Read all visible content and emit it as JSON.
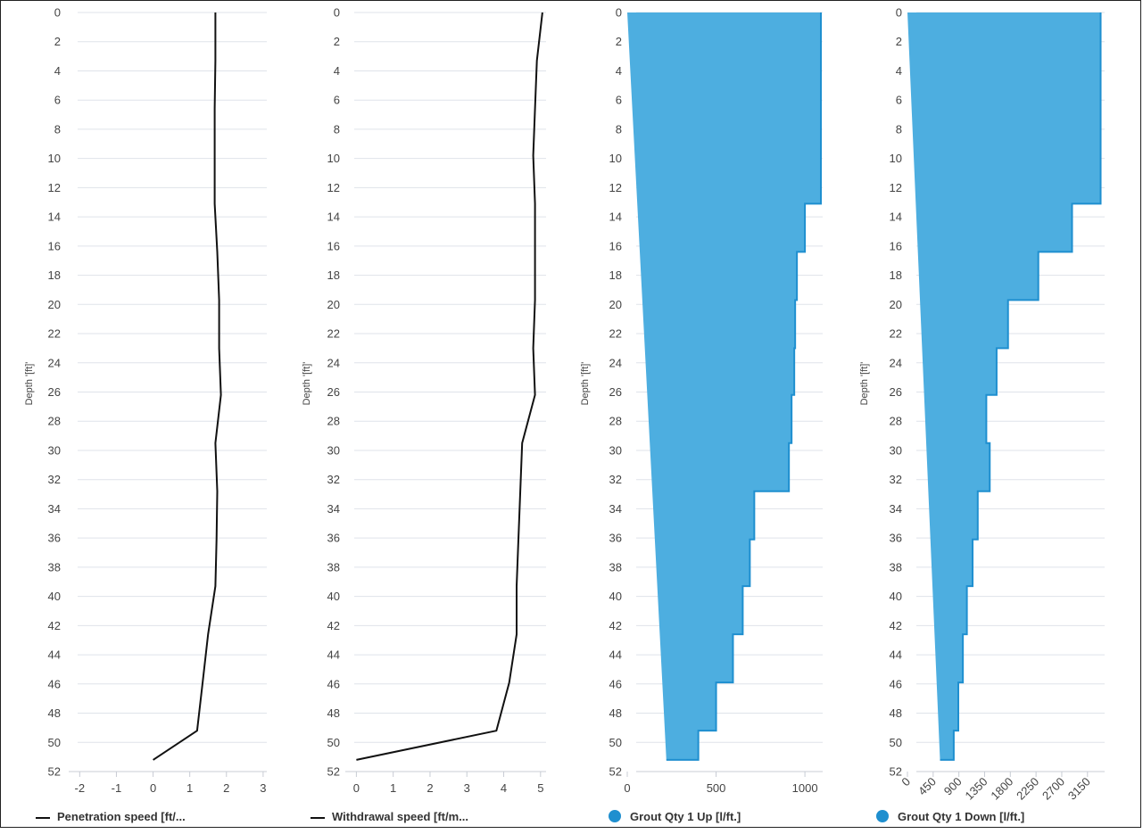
{
  "colors": {
    "line": "#111111",
    "area_fill": "#4daee0",
    "area_stroke": "#1f8fcf",
    "grid": "#dfe3ea",
    "axis": "#c8ccd4",
    "text": "#444444"
  },
  "chart_data": [
    {
      "type": "line",
      "ylabel": "Depth '[ft]'",
      "ylim": [
        0,
        52
      ],
      "y_ticks": [
        "0",
        "2",
        "4",
        "6",
        "8",
        "10",
        "12",
        "14",
        "16",
        "18",
        "20",
        "22",
        "24",
        "26",
        "28",
        "30",
        "32",
        "34",
        "36",
        "38",
        "40",
        "42",
        "44",
        "46",
        "48",
        "50",
        "52"
      ],
      "xlim": [
        -2.3,
        3.1
      ],
      "x_ticks": [
        "-2",
        "-1",
        "0",
        "1",
        "2",
        "3"
      ],
      "legend_marker": "line",
      "series": [
        {
          "name": "Penetration speed [ft/...",
          "values": [
            [
              1.7,
              0
            ],
            [
              1.7,
              3.3
            ],
            [
              1.68,
              6.6
            ],
            [
              1.68,
              9.8
            ],
            [
              1.68,
              13.1
            ],
            [
              1.75,
              16.4
            ],
            [
              1.8,
              19.7
            ],
            [
              1.8,
              23
            ],
            [
              1.85,
              26.2
            ],
            [
              1.7,
              29.5
            ],
            [
              1.75,
              32.8
            ],
            [
              1.73,
              36.1
            ],
            [
              1.7,
              39.3
            ],
            [
              1.5,
              42.6
            ],
            [
              1.35,
              45.9
            ],
            [
              1.2,
              49.2
            ],
            [
              0,
              51.2
            ]
          ]
        }
      ]
    },
    {
      "type": "line",
      "ylabel": "Depth '[ft]'",
      "ylim": [
        0,
        52
      ],
      "y_ticks": [
        "0",
        "2",
        "4",
        "6",
        "8",
        "10",
        "12",
        "14",
        "16",
        "18",
        "20",
        "22",
        "24",
        "26",
        "28",
        "30",
        "32",
        "34",
        "36",
        "38",
        "40",
        "42",
        "44",
        "46",
        "48",
        "50",
        "52"
      ],
      "xlim": [
        -0.3,
        5.15
      ],
      "x_ticks": [
        "0",
        "1",
        "2",
        "3",
        "4",
        "5"
      ],
      "legend_marker": "line",
      "series": [
        {
          "name": "Withdrawal speed [ft/m...",
          "values": [
            [
              5.05,
              0
            ],
            [
              4.9,
              3.3
            ],
            [
              4.85,
              6.6
            ],
            [
              4.8,
              9.8
            ],
            [
              4.85,
              13.1
            ],
            [
              4.85,
              16.4
            ],
            [
              4.85,
              19.7
            ],
            [
              4.8,
              23
            ],
            [
              4.85,
              26.2
            ],
            [
              4.5,
              29.5
            ],
            [
              4.45,
              32.8
            ],
            [
              4.4,
              36.1
            ],
            [
              4.35,
              39.3
            ],
            [
              4.35,
              42.6
            ],
            [
              4.15,
              45.9
            ],
            [
              3.8,
              49.2
            ],
            [
              0,
              51.2
            ]
          ]
        }
      ]
    },
    {
      "type": "area",
      "ylabel": "Depth '[ft]'",
      "ylim": [
        0,
        52
      ],
      "y_ticks": [
        "0",
        "2",
        "4",
        "6",
        "8",
        "10",
        "12",
        "14",
        "16",
        "18",
        "20",
        "22",
        "24",
        "26",
        "28",
        "30",
        "32",
        "34",
        "36",
        "38",
        "40",
        "42",
        "44",
        "46",
        "48",
        "50",
        "52"
      ],
      "xlim": [
        0,
        1100
      ],
      "x_ticks": [
        "0",
        "500",
        "1000"
      ],
      "legend_marker": "dot",
      "series": [
        {
          "name": "Grout Qty 1 Up [l/ft.]",
          "step_depths": [
            0,
            13.1,
            16.4,
            19.7,
            23,
            26.2,
            29.5,
            32.8,
            36.1,
            39.3,
            42.6,
            45.9,
            49.2,
            51.2
          ],
          "values": [
            1090,
            1000,
            955,
            945,
            940,
            925,
            910,
            715,
            690,
            650,
            595,
            500,
            400,
            220
          ]
        }
      ]
    },
    {
      "type": "area",
      "ylabel": "Depth '[ft]'",
      "ylim": [
        0,
        52
      ],
      "y_ticks": [
        "0",
        "2",
        "4",
        "6",
        "8",
        "10",
        "12",
        "14",
        "16",
        "18",
        "20",
        "22",
        "24",
        "26",
        "28",
        "30",
        "32",
        "34",
        "36",
        "38",
        "40",
        "42",
        "44",
        "46",
        "48",
        "50",
        "52"
      ],
      "xlim": [
        0,
        3450
      ],
      "x_ticks": [
        "0",
        "450",
        "900",
        "1350",
        "1800",
        "2250",
        "2700",
        "3150"
      ],
      "legend_marker": "dot",
      "series": [
        {
          "name": "Grout Qty 1 Down [l/ft.]",
          "step_depths": [
            0,
            13.1,
            16.4,
            19.7,
            23,
            26.2,
            29.5,
            32.8,
            36.1,
            39.3,
            42.6,
            45.9,
            49.2,
            51.2
          ],
          "values": [
            3380,
            2880,
            2290,
            1760,
            1560,
            1380,
            1440,
            1230,
            1140,
            1040,
            970,
            890,
            810,
            570
          ]
        }
      ]
    }
  ]
}
